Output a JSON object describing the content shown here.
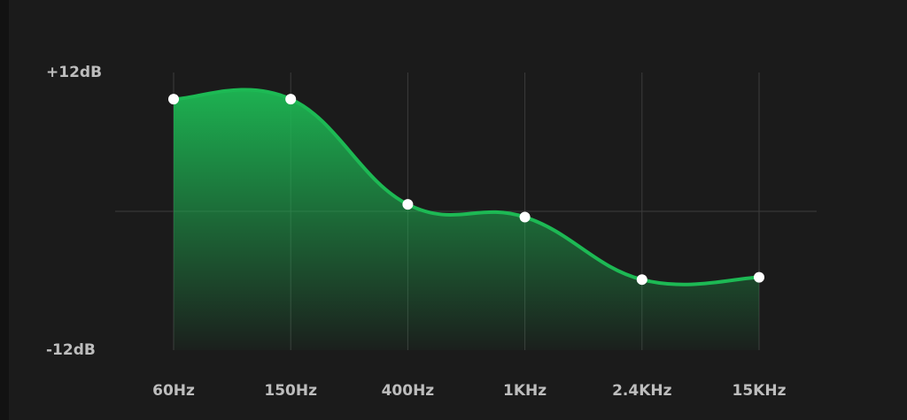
{
  "chart_data": {
    "type": "line",
    "categories": [
      "60Hz",
      "150Hz",
      "400Hz",
      "1KHz",
      "2.4KHz",
      "15KHz"
    ],
    "values": [
      9.7,
      9.7,
      0.6,
      -0.5,
      -5.9,
      -5.7
    ],
    "color": "#1db954",
    "ylim": [
      -12,
      12
    ],
    "yticks": [
      {
        "value": 12,
        "label": "+12dB"
      },
      {
        "value": -12,
        "label": "-12dB"
      }
    ],
    "grid": true
  }
}
